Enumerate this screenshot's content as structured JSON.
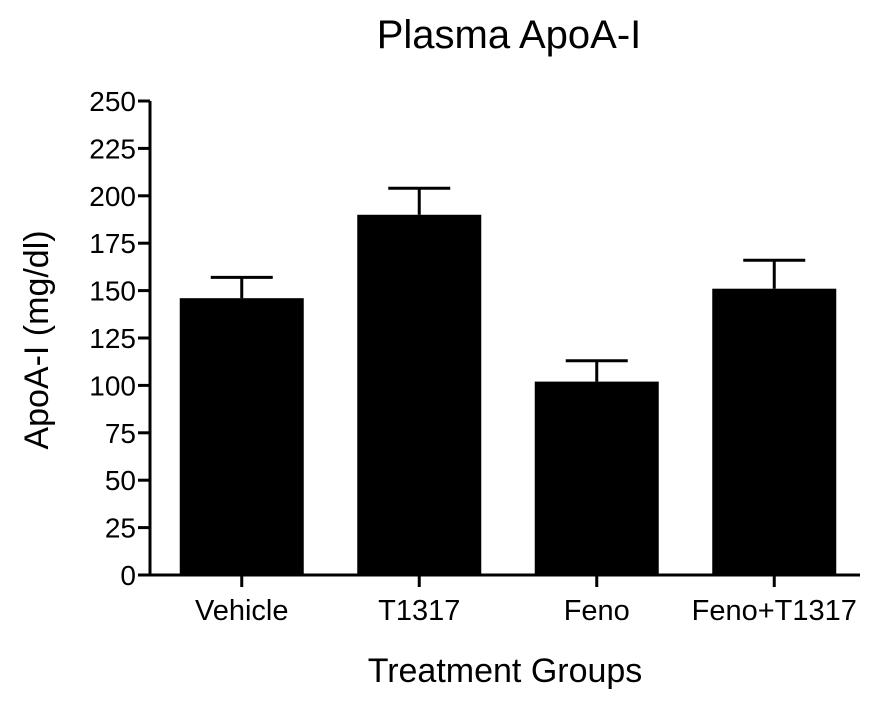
{
  "chart_data": {
    "type": "bar",
    "title": "Plasma ApoA-I",
    "xlabel": "Treatment Groups",
    "ylabel": "ApoA-I (mg/dl)",
    "ylim": [
      0,
      250
    ],
    "yticks": [
      0,
      25,
      50,
      75,
      100,
      125,
      150,
      175,
      200,
      225,
      250
    ],
    "categories": [
      "Vehicle",
      "T1317",
      "Feno",
      "Feno+T1317"
    ],
    "values": [
      146,
      190,
      102,
      151
    ],
    "error_upper": [
      157,
      204,
      113,
      166
    ],
    "bar_color": "#000000",
    "grid": false,
    "legend": "none"
  }
}
